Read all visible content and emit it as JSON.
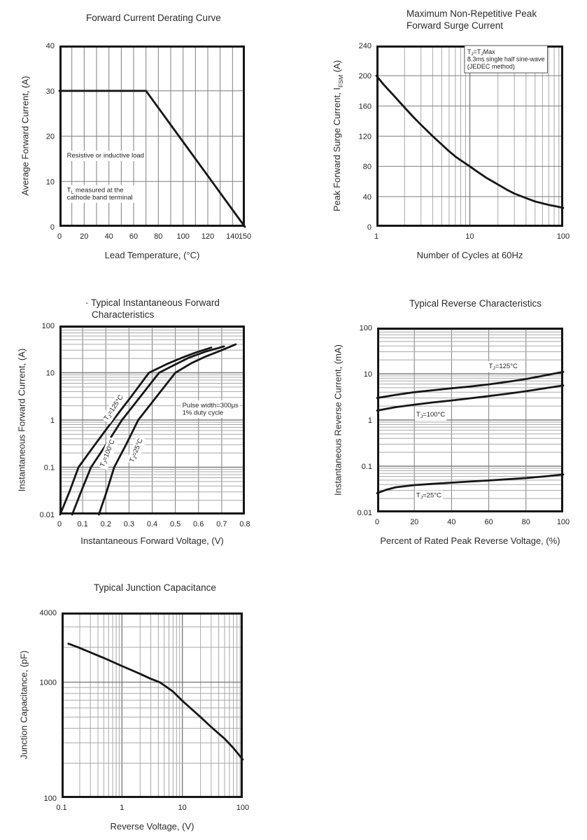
{
  "page": {
    "background": "#ffffff",
    "ink": "#222222",
    "grid_minor": "#a8a8a8",
    "grid_major": "#7e7e7e",
    "curve": "#161616"
  },
  "chart_data": [
    {
      "type": "line",
      "title": "Forward Current Derating Curve",
      "xlabel": "Lead Temperature, (°C)",
      "ylabel": "Average Forward Current, (A)",
      "x_scale": "linear",
      "x_min": 0,
      "x_max": 150,
      "x_grid_step": 10,
      "x_ticks": [
        0,
        20,
        40,
        60,
        80,
        100,
        120,
        140,
        150
      ],
      "y_scale": "linear",
      "y_min": 0,
      "y_max": 40,
      "y_grid_step": 10,
      "y_ticks": [
        0,
        10,
        20,
        30,
        40
      ],
      "series": [
        {
          "name": "average-forward-current-limit",
          "points": [
            [
              0,
              30
            ],
            [
              70,
              30
            ],
            [
              150,
              0
            ]
          ]
        }
      ],
      "annotations": [
        {
          "text": "Resistive or inductive load",
          "x": 6,
          "y": 15.8,
          "anchor": "start"
        },
        {
          "text": "T_{L} measured at the\ncathode band terminal",
          "x": 6,
          "y": 8.2,
          "anchor": "start"
        }
      ]
    },
    {
      "type": "line",
      "title": "Maximum Non-Repetitive Peak\nForward Surge Current",
      "xlabel": "Number of Cycles at 60Hz",
      "ylabel": "Peak Forward Surge Current, I_{FSM} (A)",
      "x_scale": "log",
      "x_min": 1,
      "x_max": 100,
      "x_ticks": [
        1,
        10,
        100
      ],
      "y_scale": "linear",
      "y_min": 0,
      "y_max": 240,
      "y_grid_step": 40,
      "y_ticks": [
        0,
        40,
        80,
        120,
        160,
        200,
        240
      ],
      "series": [
        {
          "name": "peak-surge-current",
          "points": [
            [
              1,
              200
            ],
            [
              1.2,
              188
            ],
            [
              1.5,
              175
            ],
            [
              2,
              158
            ],
            [
              2.5,
              145
            ],
            [
              3,
              135
            ],
            [
              4,
              120
            ],
            [
              5,
              109
            ],
            [
              6,
              100
            ],
            [
              7,
              93
            ],
            [
              8,
              88
            ],
            [
              10,
              80
            ],
            [
              12,
              73
            ],
            [
              15,
              65
            ],
            [
              20,
              56
            ],
            [
              25,
              49
            ],
            [
              30,
              44
            ],
            [
              40,
              38
            ],
            [
              50,
              33.5
            ],
            [
              60,
              31
            ],
            [
              70,
              29
            ],
            [
              85,
              27
            ],
            [
              100,
              25
            ]
          ]
        }
      ],
      "annotations": [
        {
          "text": "T_{J}=T_{J}Max\n8.3ms single half sine-wave\n(JEDEC method)",
          "x": 9.4,
          "y": 232,
          "anchor": "start",
          "boxed": true
        }
      ]
    },
    {
      "type": "line",
      "title": "· Typical Instantaneous Forward\nCharacteristics",
      "xlabel": "Instantaneous Forward Voltage, (V)",
      "ylabel": "Instantaneous Forward Current, (A)",
      "x_scale": "linear",
      "x_min": 0,
      "x_max": 0.8,
      "x_grid_step": 0.1,
      "x_ticks": [
        0,
        0.1,
        0.2,
        0.3,
        0.4,
        0.5,
        0.6,
        0.7,
        0.8
      ],
      "y_scale": "log",
      "y_min": 0.01,
      "y_max": 100,
      "y_ticks": [
        0.01,
        0.1,
        1,
        10,
        100
      ],
      "series": [
        {
          "name": "tj-125c",
          "points": [
            [
              0.003,
              0.01
            ],
            [
              0.045,
              0.032
            ],
            [
              0.082,
              0.1
            ],
            [
              0.157,
              0.32
            ],
            [
              0.232,
              1
            ],
            [
              0.31,
              3.16
            ],
            [
              0.386,
              10
            ],
            [
              0.46,
              15
            ],
            [
              0.53,
              21
            ],
            [
              0.59,
              27
            ],
            [
              0.655,
              34
            ]
          ]
        },
        {
          "name": "tj-100c",
          "points": [
            [
              0.055,
              0.01
            ],
            [
              0.095,
              0.032
            ],
            [
              0.136,
              0.1
            ],
            [
              0.205,
              0.32
            ],
            [
              0.27,
              1
            ],
            [
              0.35,
              3.16
            ],
            [
              0.43,
              10
            ],
            [
              0.5,
              15
            ],
            [
              0.56,
              21
            ],
            [
              0.63,
              28
            ],
            [
              0.71,
              36
            ]
          ]
        },
        {
          "name": "tj-25c",
          "points": [
            [
              0.17,
              0.01
            ],
            [
              0.205,
              0.032
            ],
            [
              0.236,
              0.1
            ],
            [
              0.29,
              0.32
            ],
            [
              0.34,
              1
            ],
            [
              0.42,
              3.16
            ],
            [
              0.5,
              10
            ],
            [
              0.57,
              16
            ],
            [
              0.63,
              22
            ],
            [
              0.7,
              30
            ],
            [
              0.76,
              40
            ]
          ]
        }
      ],
      "annotations": [
        {
          "text": "T_{J}=125°C",
          "x": 0.232,
          "y": 1.85,
          "anchor": "middle",
          "rotate": -56
        },
        {
          "text": "T_{J}=100°C",
          "x": 0.205,
          "y": 0.2,
          "anchor": "middle",
          "rotate": -68
        },
        {
          "text": "T_{J}=25°C",
          "x": 0.329,
          "y": 0.23,
          "anchor": "middle",
          "rotate": -68
        },
        {
          "text": "Pulse width=300μs\n1% duty cycle",
          "x": 0.53,
          "y": 2.1,
          "anchor": "start"
        }
      ]
    },
    {
      "type": "line",
      "title": "Typical Reverse Characteristics",
      "xlabel": "Percent of Rated Peak Reverse Voltage, (%)",
      "ylabel": "Instantaneous Reverse Current, (mA)",
      "x_scale": "linear",
      "x_min": 0,
      "x_max": 100,
      "x_grid_step": 20,
      "x_ticks": [
        0,
        20,
        40,
        60,
        80,
        100
      ],
      "y_scale": "log",
      "y_min": 0.01,
      "y_max": 100,
      "y_ticks": [
        0.01,
        0.1,
        1,
        10,
        100
      ],
      "series": [
        {
          "name": "tj-125c",
          "points": [
            [
              0,
              3.0
            ],
            [
              10,
              3.5
            ],
            [
              20,
              4.0
            ],
            [
              30,
              4.4
            ],
            [
              40,
              4.85
            ],
            [
              50,
              5.3
            ],
            [
              60,
              5.9
            ],
            [
              70,
              6.7
            ],
            [
              80,
              7.7
            ],
            [
              90,
              9.2
            ],
            [
              100,
              11
            ]
          ]
        },
        {
          "name": "tj-100c",
          "points": [
            [
              0,
              1.6
            ],
            [
              10,
              1.9
            ],
            [
              20,
              2.15
            ],
            [
              30,
              2.4
            ],
            [
              40,
              2.65
            ],
            [
              50,
              2.95
            ],
            [
              60,
              3.3
            ],
            [
              70,
              3.7
            ],
            [
              80,
              4.2
            ],
            [
              90,
              4.85
            ],
            [
              100,
              5.6
            ]
          ]
        },
        {
          "name": "tj-25c",
          "points": [
            [
              0,
              0.026
            ],
            [
              5,
              0.031
            ],
            [
              10,
              0.035
            ],
            [
              20,
              0.039
            ],
            [
              30,
              0.0415
            ],
            [
              40,
              0.044
            ],
            [
              50,
              0.0465
            ],
            [
              60,
              0.049
            ],
            [
              70,
              0.052
            ],
            [
              80,
              0.0555
            ],
            [
              90,
              0.06
            ],
            [
              100,
              0.066
            ]
          ]
        }
      ],
      "annotations": [
        {
          "text": "T_{J}=125°C",
          "x": 60,
          "y": 15,
          "anchor": "start"
        },
        {
          "text": "T_{J}=100°C",
          "x": 21,
          "y": 1.35,
          "anchor": "start"
        },
        {
          "text": "T_{J}=25°C",
          "x": 21,
          "y": 0.024,
          "anchor": "start"
        }
      ]
    },
    {
      "type": "line",
      "title": "Typical Junction Capacitance",
      "xlabel": "Reverse Voltage, (V)",
      "ylabel": "Junction Capacitance, (pF)",
      "x_scale": "log",
      "x_min": 0.1,
      "x_max": 100,
      "x_ticks": [
        0.1,
        1,
        10,
        100
      ],
      "y_scale": "log",
      "y_min": 100,
      "y_max": 4000,
      "y_ticks": [
        100,
        1000,
        4000
      ],
      "series": [
        {
          "name": "junction-capacitance",
          "points": [
            [
              0.13,
              2150
            ],
            [
              0.18,
              2020
            ],
            [
              0.25,
              1880
            ],
            [
              0.35,
              1750
            ],
            [
              0.5,
              1620
            ],
            [
              0.7,
              1500
            ],
            [
              1,
              1380
            ],
            [
              1.4,
              1280
            ],
            [
              2,
              1180
            ],
            [
              3,
              1070
            ],
            [
              4.2,
              1000
            ],
            [
              5,
              940
            ],
            [
              7,
              830
            ],
            [
              10,
              690
            ],
            [
              14,
              590
            ],
            [
              20,
              500
            ],
            [
              30,
              410
            ],
            [
              50,
              325
            ],
            [
              70,
              270
            ],
            [
              100,
              215
            ]
          ]
        }
      ],
      "annotations": []
    }
  ]
}
